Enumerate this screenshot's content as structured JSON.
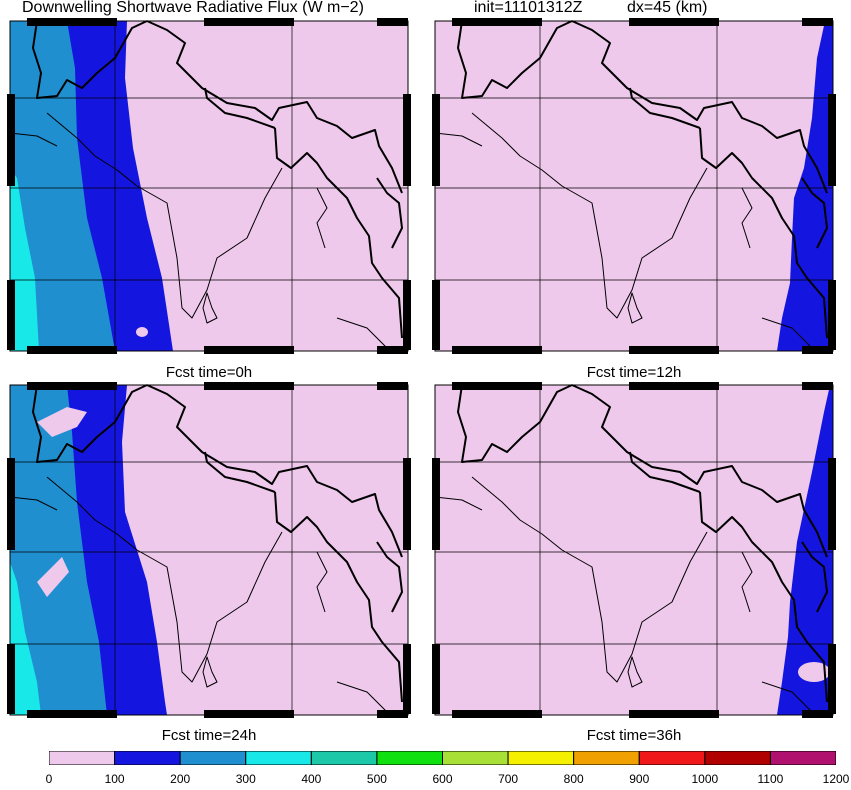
{
  "title": {
    "variable": "Downwelling Shortwave Radiative Flux (W m−2)",
    "init": "init=11101312Z",
    "dx": "dx=45 (km)"
  },
  "panels": [
    {
      "label": "Fcst time=0h"
    },
    {
      "label": "Fcst time=12h"
    },
    {
      "label": "Fcst time=24h"
    },
    {
      "label": "Fcst time=36h"
    }
  ],
  "colorbar": {
    "levels": [
      "0",
      "100",
      "200",
      "300",
      "400",
      "500",
      "600",
      "700",
      "800",
      "900",
      "1000",
      "1100",
      "1200"
    ],
    "colors": [
      "#eec9ec",
      "#1515e0",
      "#1f8fd0",
      "#18e8e8",
      "#1cc8a8",
      "#10e010",
      "#a8e038",
      "#f4f000",
      "#f0a000",
      "#f01818",
      "#b00000",
      "#b0106e"
    ]
  },
  "legend_colors": {
    "land_background": "#eec9ec",
    "flux_100_200": "#1515e0",
    "flux_200_300": "#1f8fd0",
    "flux_300_400": "#18e8e8"
  }
}
